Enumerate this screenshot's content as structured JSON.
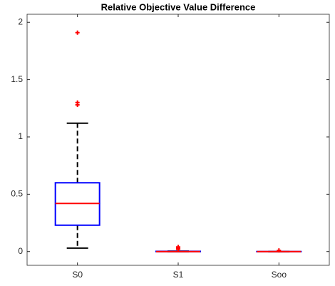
{
  "chart_data": {
    "type": "box",
    "title": "Relative Objective Value Difference",
    "categories": [
      "S0",
      "S1",
      "Soo"
    ],
    "boxes": [
      {
        "whisker_low": 0.03,
        "q1": 0.23,
        "median": 0.42,
        "q3": 0.6,
        "whisker_high": 1.12,
        "outliers": [
          1.28,
          1.3,
          1.91
        ]
      },
      {
        "whisker_low": 0,
        "q1": 0,
        "median": 0,
        "q3": 0.002,
        "whisker_high": 0.004,
        "outliers": [
          0.02,
          0.03,
          0.04
        ]
      },
      {
        "whisker_low": 0,
        "q1": 0,
        "median": 0,
        "q3": 0,
        "whisker_high": 0,
        "outliers": [
          0.01
        ]
      }
    ],
    "box_color": "#0000ff",
    "median_color": "#ff0000",
    "whisker_color": "#000000",
    "outlier_color": "#ff0000",
    "ylim": [
      -0.12,
      2.07
    ],
    "yticks": [
      0,
      0.5,
      1,
      1.5,
      2
    ]
  }
}
